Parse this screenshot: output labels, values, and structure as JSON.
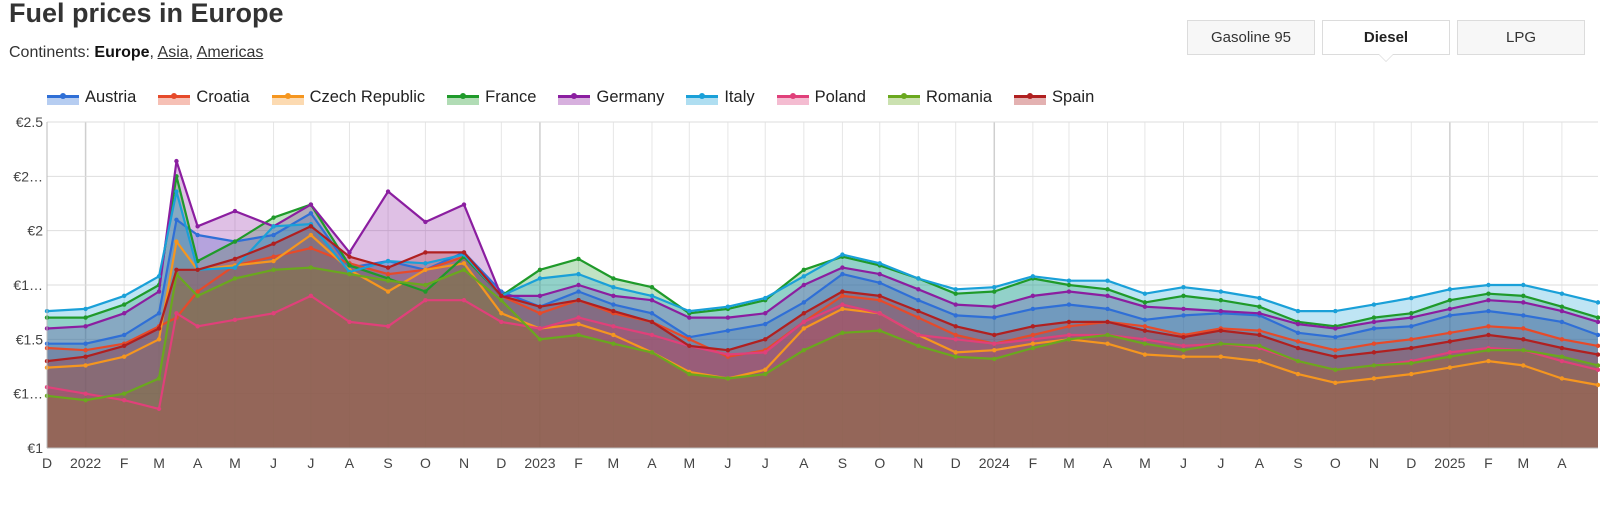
{
  "page": {
    "title": "Fuel prices in Europe",
    "continents_label": "Continents:",
    "continents": [
      {
        "label": "Europe",
        "active": true
      },
      {
        "label": "Asia",
        "active": false
      },
      {
        "label": "Americas",
        "active": false
      }
    ]
  },
  "tabs": [
    {
      "label": "Gasoline 95",
      "active": false
    },
    {
      "label": "Diesel",
      "active": true
    },
    {
      "label": "LPG",
      "active": false
    }
  ],
  "chart_data": {
    "type": "area",
    "title": "Fuel prices in Europe",
    "ylim": [
      1.0,
      2.5
    ],
    "y_ticks": [
      {
        "value": 1.0,
        "label": "€1"
      },
      {
        "value": 1.25,
        "label": "€1…"
      },
      {
        "value": 1.5,
        "label": "€1.5"
      },
      {
        "value": 1.75,
        "label": "€1…"
      },
      {
        "value": 2.0,
        "label": "€2"
      },
      {
        "value": 2.25,
        "label": "€2…"
      },
      {
        "value": 2.5,
        "label": "€2.5"
      }
    ],
    "x_range": [
      "2021-12-01",
      "2025-04-30"
    ],
    "x_ticks": [
      "D",
      "2022",
      "F",
      "M",
      "A",
      "M",
      "J",
      "J",
      "A",
      "S",
      "O",
      "N",
      "D",
      "2023",
      "F",
      "M",
      "A",
      "M",
      "J",
      "J",
      "A",
      "S",
      "O",
      "N",
      "D",
      "2024",
      "F",
      "M",
      "A",
      "M",
      "J",
      "J",
      "A",
      "S",
      "O",
      "N",
      "D",
      "2025",
      "F",
      "M",
      "A"
    ],
    "grid": true,
    "legend_position": "top-left",
    "series": [
      {
        "name": "Austria",
        "color": "#2f6fd6",
        "x": [
          "2021-12-01",
          "2022-01-01",
          "2022-02-01",
          "2022-03-01",
          "2022-03-15",
          "2022-04-01",
          "2022-05-01",
          "2022-06-01",
          "2022-07-01",
          "2022-08-01",
          "2022-09-01",
          "2022-10-01",
          "2022-11-01",
          "2022-12-01",
          "2023-01-01",
          "2023-02-01",
          "2023-03-01",
          "2023-04-01",
          "2023-05-01",
          "2023-06-01",
          "2023-07-01",
          "2023-08-01",
          "2023-09-01",
          "2023-10-01",
          "2023-11-01",
          "2023-12-01",
          "2024-01-01",
          "2024-02-01",
          "2024-03-01",
          "2024-04-01",
          "2024-05-01",
          "2024-06-01",
          "2024-07-01",
          "2024-08-01",
          "2024-09-01",
          "2024-10-01",
          "2024-11-01",
          "2024-12-01",
          "2025-01-01",
          "2025-02-01",
          "2025-03-01",
          "2025-04-01",
          "2025-04-30"
        ],
        "values": [
          1.48,
          1.48,
          1.52,
          1.62,
          2.05,
          1.98,
          1.95,
          1.98,
          2.08,
          1.83,
          1.86,
          1.82,
          1.9,
          1.72,
          1.65,
          1.72,
          1.66,
          1.62,
          1.51,
          1.54,
          1.57,
          1.67,
          1.8,
          1.76,
          1.68,
          1.61,
          1.6,
          1.64,
          1.66,
          1.64,
          1.59,
          1.61,
          1.62,
          1.61,
          1.53,
          1.51,
          1.55,
          1.56,
          1.61,
          1.63,
          1.61,
          1.58,
          1.52
        ]
      },
      {
        "name": "Croatia",
        "color": "#e64a2a",
        "x": [
          "2021-12-01",
          "2022-01-01",
          "2022-02-01",
          "2022-03-01",
          "2022-03-15",
          "2022-04-01",
          "2022-05-01",
          "2022-06-01",
          "2022-07-01",
          "2022-08-01",
          "2022-09-01",
          "2022-10-01",
          "2022-11-01",
          "2022-12-01",
          "2023-01-01",
          "2023-02-01",
          "2023-03-01",
          "2023-04-01",
          "2023-05-01",
          "2023-06-01",
          "2023-07-01",
          "2023-08-01",
          "2023-09-01",
          "2023-10-01",
          "2023-11-01",
          "2023-12-01",
          "2024-01-01",
          "2024-02-01",
          "2024-03-01",
          "2024-04-01",
          "2024-05-01",
          "2024-06-01",
          "2024-07-01",
          "2024-08-01",
          "2024-09-01",
          "2024-10-01",
          "2024-11-01",
          "2024-12-01",
          "2025-01-01",
          "2025-02-01",
          "2025-03-01",
          "2025-04-01",
          "2025-04-30"
        ],
        "values": [
          1.46,
          1.45,
          1.48,
          1.56,
          1.6,
          1.72,
          1.84,
          1.88,
          1.92,
          1.85,
          1.8,
          1.82,
          1.88,
          1.7,
          1.62,
          1.68,
          1.62,
          1.58,
          1.5,
          1.42,
          1.45,
          1.58,
          1.7,
          1.68,
          1.6,
          1.52,
          1.48,
          1.52,
          1.56,
          1.58,
          1.56,
          1.52,
          1.55,
          1.54,
          1.49,
          1.45,
          1.48,
          1.5,
          1.53,
          1.56,
          1.55,
          1.5,
          1.47
        ]
      },
      {
        "name": "Czech Republic",
        "color": "#f5961f",
        "x": [
          "2021-12-01",
          "2022-01-01",
          "2022-02-01",
          "2022-03-01",
          "2022-03-15",
          "2022-04-01",
          "2022-05-01",
          "2022-06-01",
          "2022-07-01",
          "2022-08-01",
          "2022-09-01",
          "2022-10-01",
          "2022-11-01",
          "2022-12-01",
          "2023-01-01",
          "2023-02-01",
          "2023-03-01",
          "2023-04-01",
          "2023-05-01",
          "2023-06-01",
          "2023-07-01",
          "2023-08-01",
          "2023-09-01",
          "2023-10-01",
          "2023-11-01",
          "2023-12-01",
          "2024-01-01",
          "2024-02-01",
          "2024-03-01",
          "2024-04-01",
          "2024-05-01",
          "2024-06-01",
          "2024-07-01",
          "2024-08-01",
          "2024-09-01",
          "2024-10-01",
          "2024-11-01",
          "2024-12-01",
          "2025-01-01",
          "2025-02-01",
          "2025-03-01",
          "2025-04-01",
          "2025-04-30"
        ],
        "values": [
          1.37,
          1.38,
          1.42,
          1.5,
          1.95,
          1.82,
          1.84,
          1.86,
          1.98,
          1.82,
          1.72,
          1.82,
          1.85,
          1.62,
          1.55,
          1.57,
          1.52,
          1.44,
          1.35,
          1.32,
          1.36,
          1.55,
          1.64,
          1.62,
          1.52,
          1.44,
          1.45,
          1.48,
          1.5,
          1.48,
          1.43,
          1.42,
          1.42,
          1.4,
          1.34,
          1.3,
          1.32,
          1.34,
          1.37,
          1.4,
          1.38,
          1.32,
          1.29
        ]
      },
      {
        "name": "France",
        "color": "#1f9a2a",
        "x": [
          "2021-12-01",
          "2022-01-01",
          "2022-02-01",
          "2022-03-01",
          "2022-03-15",
          "2022-04-01",
          "2022-05-01",
          "2022-06-01",
          "2022-07-01",
          "2022-08-01",
          "2022-09-01",
          "2022-10-01",
          "2022-11-01",
          "2022-12-01",
          "2023-01-01",
          "2023-02-01",
          "2023-03-01",
          "2023-04-01",
          "2023-05-01",
          "2023-06-01",
          "2023-07-01",
          "2023-08-01",
          "2023-09-01",
          "2023-10-01",
          "2023-11-01",
          "2023-12-01",
          "2024-01-01",
          "2024-02-01",
          "2024-03-01",
          "2024-04-01",
          "2024-05-01",
          "2024-06-01",
          "2024-07-01",
          "2024-08-01",
          "2024-09-01",
          "2024-10-01",
          "2024-11-01",
          "2024-12-01",
          "2025-01-01",
          "2025-02-01",
          "2025-03-01",
          "2025-04-01",
          "2025-04-30"
        ],
        "values": [
          1.6,
          1.6,
          1.66,
          1.75,
          2.25,
          1.86,
          1.95,
          2.06,
          2.12,
          1.84,
          1.78,
          1.72,
          1.88,
          1.7,
          1.82,
          1.87,
          1.78,
          1.74,
          1.62,
          1.64,
          1.68,
          1.82,
          1.88,
          1.84,
          1.78,
          1.71,
          1.72,
          1.78,
          1.75,
          1.73,
          1.67,
          1.7,
          1.68,
          1.65,
          1.58,
          1.56,
          1.6,
          1.62,
          1.68,
          1.71,
          1.7,
          1.65,
          1.6
        ]
      },
      {
        "name": "Germany",
        "color": "#8b1ea0",
        "x": [
          "2021-12-01",
          "2022-01-01",
          "2022-02-01",
          "2022-03-01",
          "2022-03-15",
          "2022-04-01",
          "2022-05-01",
          "2022-06-01",
          "2022-07-01",
          "2022-08-01",
          "2022-09-01",
          "2022-10-01",
          "2022-11-01",
          "2022-12-01",
          "2023-01-01",
          "2023-02-01",
          "2023-03-01",
          "2023-04-01",
          "2023-05-01",
          "2023-06-01",
          "2023-07-01",
          "2023-08-01",
          "2023-09-01",
          "2023-10-01",
          "2023-11-01",
          "2023-12-01",
          "2024-01-01",
          "2024-02-01",
          "2024-03-01",
          "2024-04-01",
          "2024-05-01",
          "2024-06-01",
          "2024-07-01",
          "2024-08-01",
          "2024-09-01",
          "2024-10-01",
          "2024-11-01",
          "2024-12-01",
          "2025-01-01",
          "2025-02-01",
          "2025-03-01",
          "2025-04-01",
          "2025-04-30"
        ],
        "values": [
          1.55,
          1.56,
          1.62,
          1.72,
          2.32,
          2.02,
          2.09,
          2.02,
          2.12,
          1.9,
          2.18,
          2.04,
          2.12,
          1.7,
          1.7,
          1.75,
          1.7,
          1.68,
          1.6,
          1.6,
          1.62,
          1.75,
          1.83,
          1.8,
          1.73,
          1.66,
          1.65,
          1.7,
          1.72,
          1.7,
          1.65,
          1.64,
          1.63,
          1.62,
          1.57,
          1.55,
          1.58,
          1.6,
          1.64,
          1.68,
          1.67,
          1.63,
          1.58
        ]
      },
      {
        "name": "Italy",
        "color": "#1aa0d8",
        "x": [
          "2021-12-01",
          "2022-01-01",
          "2022-02-01",
          "2022-03-01",
          "2022-03-15",
          "2022-04-01",
          "2022-05-01",
          "2022-06-01",
          "2022-07-01",
          "2022-08-01",
          "2022-09-01",
          "2022-10-01",
          "2022-11-01",
          "2022-12-01",
          "2023-01-01",
          "2023-02-01",
          "2023-03-01",
          "2023-04-01",
          "2023-05-01",
          "2023-06-01",
          "2023-07-01",
          "2023-08-01",
          "2023-09-01",
          "2023-10-01",
          "2023-11-01",
          "2023-12-01",
          "2024-01-01",
          "2024-02-01",
          "2024-03-01",
          "2024-04-01",
          "2024-05-01",
          "2024-06-01",
          "2024-07-01",
          "2024-08-01",
          "2024-09-01",
          "2024-10-01",
          "2024-11-01",
          "2024-12-01",
          "2025-01-01",
          "2025-02-01",
          "2025-03-01",
          "2025-04-01",
          "2025-04-30"
        ],
        "values": [
          1.63,
          1.64,
          1.7,
          1.79,
          2.18,
          1.82,
          1.83,
          2.02,
          2.03,
          1.81,
          1.86,
          1.85,
          1.89,
          1.7,
          1.78,
          1.8,
          1.74,
          1.7,
          1.63,
          1.65,
          1.69,
          1.79,
          1.89,
          1.85,
          1.78,
          1.73,
          1.74,
          1.79,
          1.77,
          1.77,
          1.71,
          1.74,
          1.72,
          1.69,
          1.63,
          1.63,
          1.66,
          1.69,
          1.73,
          1.75,
          1.75,
          1.71,
          1.67
        ]
      },
      {
        "name": "Poland",
        "color": "#e0407a",
        "x": [
          "2021-12-01",
          "2022-01-01",
          "2022-02-01",
          "2022-03-01",
          "2022-03-15",
          "2022-04-01",
          "2022-05-01",
          "2022-06-01",
          "2022-07-01",
          "2022-08-01",
          "2022-09-01",
          "2022-10-01",
          "2022-11-01",
          "2022-12-01",
          "2023-01-01",
          "2023-02-01",
          "2023-03-01",
          "2023-04-01",
          "2023-05-01",
          "2023-06-01",
          "2023-07-01",
          "2023-08-01",
          "2023-09-01",
          "2023-10-01",
          "2023-11-01",
          "2023-12-01",
          "2024-01-01",
          "2024-02-01",
          "2024-03-01",
          "2024-04-01",
          "2024-05-01",
          "2024-06-01",
          "2024-07-01",
          "2024-08-01",
          "2024-09-01",
          "2024-10-01",
          "2024-11-01",
          "2024-12-01",
          "2025-01-01",
          "2025-02-01",
          "2025-03-01",
          "2025-04-01",
          "2025-04-30"
        ],
        "values": [
          1.28,
          1.25,
          1.22,
          1.18,
          1.62,
          1.56,
          1.59,
          1.62,
          1.7,
          1.58,
          1.56,
          1.68,
          1.68,
          1.58,
          1.55,
          1.6,
          1.56,
          1.52,
          1.47,
          1.43,
          1.44,
          1.58,
          1.66,
          1.62,
          1.52,
          1.5,
          1.48,
          1.5,
          1.52,
          1.52,
          1.5,
          1.47,
          1.48,
          1.46,
          1.4,
          1.36,
          1.38,
          1.4,
          1.44,
          1.46,
          1.45,
          1.4,
          1.36
        ]
      },
      {
        "name": "Romania",
        "color": "#6aa81e",
        "x": [
          "2021-12-01",
          "2022-01-01",
          "2022-02-01",
          "2022-03-01",
          "2022-03-15",
          "2022-04-01",
          "2022-05-01",
          "2022-06-01",
          "2022-07-01",
          "2022-08-01",
          "2022-09-01",
          "2022-10-01",
          "2022-11-01",
          "2022-12-01",
          "2023-01-01",
          "2023-02-01",
          "2023-03-01",
          "2023-04-01",
          "2023-05-01",
          "2023-06-01",
          "2023-07-01",
          "2023-08-01",
          "2023-09-01",
          "2023-10-01",
          "2023-11-01",
          "2023-12-01",
          "2024-01-01",
          "2024-02-01",
          "2024-03-01",
          "2024-04-01",
          "2024-05-01",
          "2024-06-01",
          "2024-07-01",
          "2024-08-01",
          "2024-09-01",
          "2024-10-01",
          "2024-11-01",
          "2024-12-01",
          "2025-01-01",
          "2025-02-01",
          "2025-03-01",
          "2025-04-01",
          "2025-04-30"
        ],
        "values": [
          1.24,
          1.22,
          1.25,
          1.32,
          1.8,
          1.7,
          1.78,
          1.82,
          1.83,
          1.8,
          1.77,
          1.75,
          1.82,
          1.68,
          1.5,
          1.52,
          1.48,
          1.44,
          1.34,
          1.32,
          1.34,
          1.45,
          1.53,
          1.54,
          1.47,
          1.42,
          1.41,
          1.46,
          1.5,
          1.52,
          1.48,
          1.45,
          1.48,
          1.47,
          1.4,
          1.36,
          1.38,
          1.39,
          1.42,
          1.45,
          1.45,
          1.42,
          1.38
        ]
      },
      {
        "name": "Spain",
        "color": "#b02020",
        "x": [
          "2021-12-01",
          "2022-01-01",
          "2022-02-01",
          "2022-03-01",
          "2022-03-15",
          "2022-04-01",
          "2022-05-01",
          "2022-06-01",
          "2022-07-01",
          "2022-08-01",
          "2022-09-01",
          "2022-10-01",
          "2022-11-01",
          "2022-12-01",
          "2023-01-01",
          "2023-02-01",
          "2023-03-01",
          "2023-04-01",
          "2023-05-01",
          "2023-06-01",
          "2023-07-01",
          "2023-08-01",
          "2023-09-01",
          "2023-10-01",
          "2023-11-01",
          "2023-12-01",
          "2024-01-01",
          "2024-02-01",
          "2024-03-01",
          "2024-04-01",
          "2024-05-01",
          "2024-06-01",
          "2024-07-01",
          "2024-08-01",
          "2024-09-01",
          "2024-10-01",
          "2024-11-01",
          "2024-12-01",
          "2025-01-01",
          "2025-02-01",
          "2025-03-01",
          "2025-04-01",
          "2025-04-30"
        ],
        "values": [
          1.4,
          1.42,
          1.47,
          1.55,
          1.82,
          1.82,
          1.87,
          1.94,
          2.02,
          1.88,
          1.83,
          1.9,
          1.9,
          1.7,
          1.65,
          1.68,
          1.63,
          1.58,
          1.47,
          1.45,
          1.5,
          1.62,
          1.72,
          1.7,
          1.63,
          1.56,
          1.52,
          1.56,
          1.58,
          1.58,
          1.54,
          1.51,
          1.54,
          1.52,
          1.46,
          1.42,
          1.44,
          1.46,
          1.49,
          1.52,
          1.5,
          1.46,
          1.43
        ]
      }
    ]
  }
}
